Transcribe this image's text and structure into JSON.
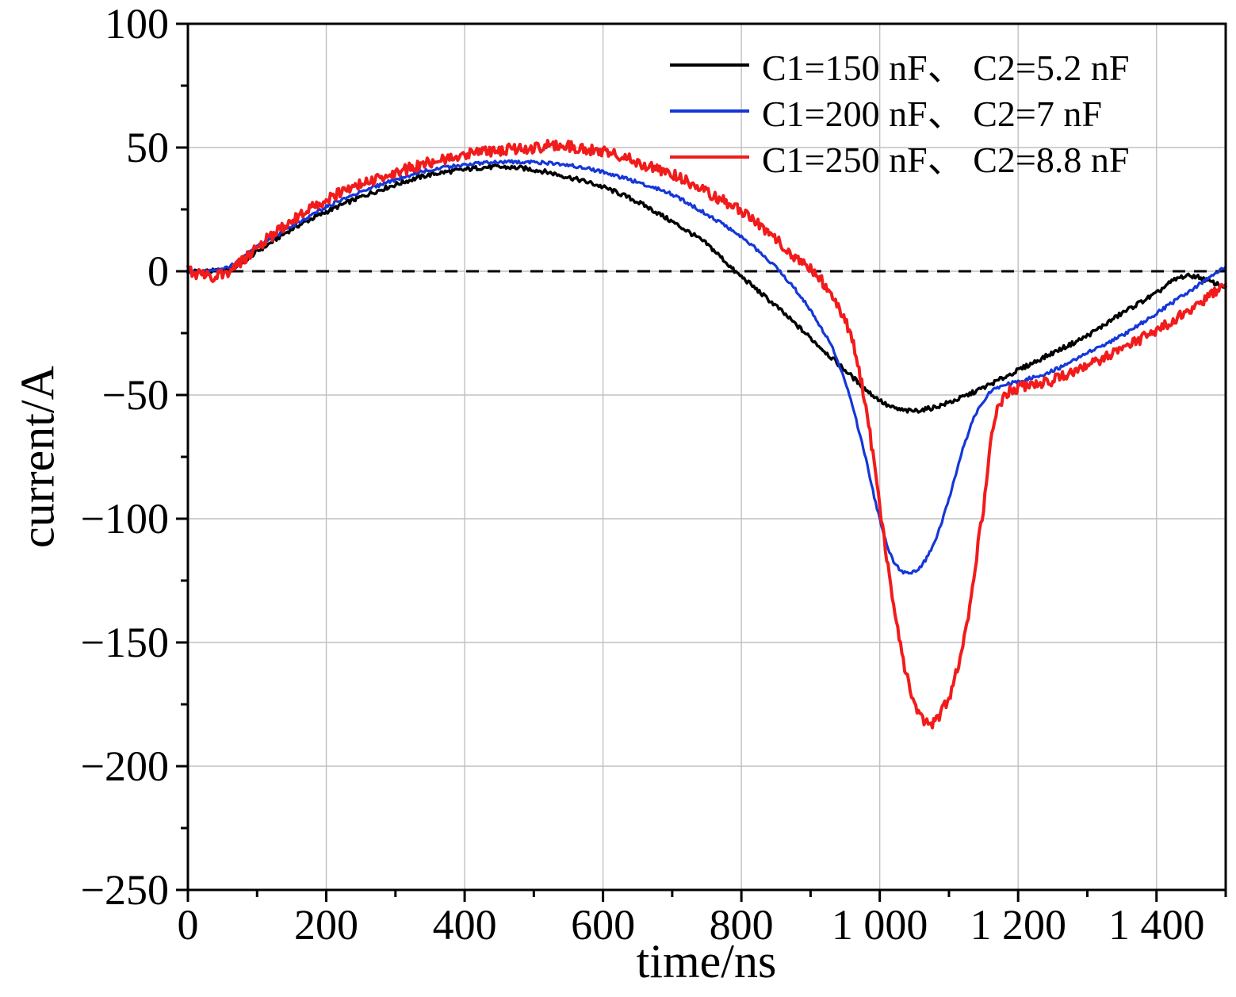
{
  "chart_data": {
    "type": "line",
    "title": "",
    "xlabel": "time/ns",
    "ylabel": "current/A",
    "xlim": [
      0,
      1500
    ],
    "ylim": [
      -250,
      100
    ],
    "x_ticks": [
      0,
      200,
      400,
      600,
      800,
      1000,
      1200,
      1400
    ],
    "x_tick_labels": [
      "0",
      "200",
      "400",
      "600",
      "800",
      "1 000",
      "1 200",
      "1 400"
    ],
    "x_minor_ticks": [
      100,
      300,
      500,
      700,
      900,
      1100,
      1300,
      1500
    ],
    "y_ticks": [
      100,
      50,
      0,
      -50,
      -100,
      -150,
      -200,
      -250
    ],
    "y_tick_labels": [
      "100",
      "50",
      "0",
      "−50",
      "−100",
      "−150",
      "−200",
      "−250"
    ],
    "y_minor_step": 25,
    "grid": true,
    "grid_color": "#c0c0c4",
    "zero_line": {
      "value": 0,
      "style": "dashed",
      "color": "#000000"
    },
    "legend_position": "top-right",
    "series": [
      {
        "name": "C1=150 nF、 C2=5.2 nF",
        "color": "#000000",
        "width": 3.5,
        "noise": 0.9,
        "points": [
          [
            0,
            0
          ],
          [
            30,
            0
          ],
          [
            60,
            1
          ],
          [
            100,
            8
          ],
          [
            150,
            17
          ],
          [
            200,
            24
          ],
          [
            250,
            30
          ],
          [
            300,
            35
          ],
          [
            350,
            39
          ],
          [
            400,
            41
          ],
          [
            430,
            42
          ],
          [
            460,
            42
          ],
          [
            500,
            41
          ],
          [
            550,
            38
          ],
          [
            600,
            34
          ],
          [
            650,
            28
          ],
          [
            700,
            20
          ],
          [
            750,
            11
          ],
          [
            790,
            0
          ],
          [
            850,
            -14
          ],
          [
            900,
            -27
          ],
          [
            950,
            -40
          ],
          [
            1000,
            -52
          ],
          [
            1030,
            -56
          ],
          [
            1060,
            -56
          ],
          [
            1100,
            -53
          ],
          [
            1150,
            -47
          ],
          [
            1200,
            -40
          ],
          [
            1250,
            -33
          ],
          [
            1300,
            -26
          ],
          [
            1350,
            -17
          ],
          [
            1400,
            -9
          ],
          [
            1430,
            -3
          ],
          [
            1455,
            -2
          ],
          [
            1475,
            -4
          ],
          [
            1500,
            -6
          ]
        ]
      },
      {
        "name": "C1=200 nF、 C2=7 nF",
        "color": "#1437d8",
        "width": 3.2,
        "noise": 0.7,
        "points": [
          [
            0,
            0
          ],
          [
            30,
            0
          ],
          [
            60,
            2
          ],
          [
            100,
            10
          ],
          [
            150,
            18
          ],
          [
            200,
            26
          ],
          [
            250,
            32
          ],
          [
            300,
            37
          ],
          [
            350,
            41
          ],
          [
            400,
            43
          ],
          [
            450,
            44
          ],
          [
            500,
            44
          ],
          [
            550,
            43
          ],
          [
            600,
            40
          ],
          [
            650,
            36
          ],
          [
            700,
            31
          ],
          [
            750,
            23
          ],
          [
            800,
            14
          ],
          [
            850,
            2
          ],
          [
            880,
            -8
          ],
          [
            900,
            -16
          ],
          [
            930,
            -30
          ],
          [
            950,
            -45
          ],
          [
            975,
            -70
          ],
          [
            1000,
            -100
          ],
          [
            1020,
            -117
          ],
          [
            1040,
            -122
          ],
          [
            1060,
            -119
          ],
          [
            1080,
            -109
          ],
          [
            1100,
            -92
          ],
          [
            1120,
            -72
          ],
          [
            1140,
            -57
          ],
          [
            1160,
            -49
          ],
          [
            1180,
            -46
          ],
          [
            1220,
            -43
          ],
          [
            1260,
            -39
          ],
          [
            1300,
            -33
          ],
          [
            1350,
            -26
          ],
          [
            1400,
            -17
          ],
          [
            1450,
            -8
          ],
          [
            1480,
            -2
          ],
          [
            1500,
            2
          ]
        ]
      },
      {
        "name": "C1=250 nF、 C2=8.8 nF",
        "color": "#f21b1b",
        "width": 4.0,
        "noise": 2.2,
        "points": [
          [
            0,
            0
          ],
          [
            30,
            -2
          ],
          [
            60,
            0
          ],
          [
            100,
            10
          ],
          [
            150,
            20
          ],
          [
            200,
            29
          ],
          [
            250,
            35
          ],
          [
            300,
            40
          ],
          [
            350,
            44
          ],
          [
            400,
            47
          ],
          [
            450,
            49
          ],
          [
            500,
            50
          ],
          [
            540,
            51
          ],
          [
            580,
            49
          ],
          [
            620,
            47
          ],
          [
            660,
            43
          ],
          [
            700,
            39
          ],
          [
            750,
            32
          ],
          [
            800,
            24
          ],
          [
            850,
            13
          ],
          [
            900,
            1
          ],
          [
            920,
            -5
          ],
          [
            940,
            -14
          ],
          [
            960,
            -28
          ],
          [
            980,
            -55
          ],
          [
            1000,
            -95
          ],
          [
            1020,
            -135
          ],
          [
            1040,
            -165
          ],
          [
            1060,
            -180
          ],
          [
            1075,
            -183
          ],
          [
            1090,
            -178
          ],
          [
            1110,
            -163
          ],
          [
            1130,
            -135
          ],
          [
            1150,
            -95
          ],
          [
            1165,
            -62
          ],
          [
            1180,
            -50
          ],
          [
            1200,
            -47
          ],
          [
            1250,
            -44
          ],
          [
            1300,
            -38
          ],
          [
            1350,
            -31
          ],
          [
            1400,
            -24
          ],
          [
            1450,
            -15
          ],
          [
            1500,
            -6
          ]
        ]
      }
    ]
  }
}
